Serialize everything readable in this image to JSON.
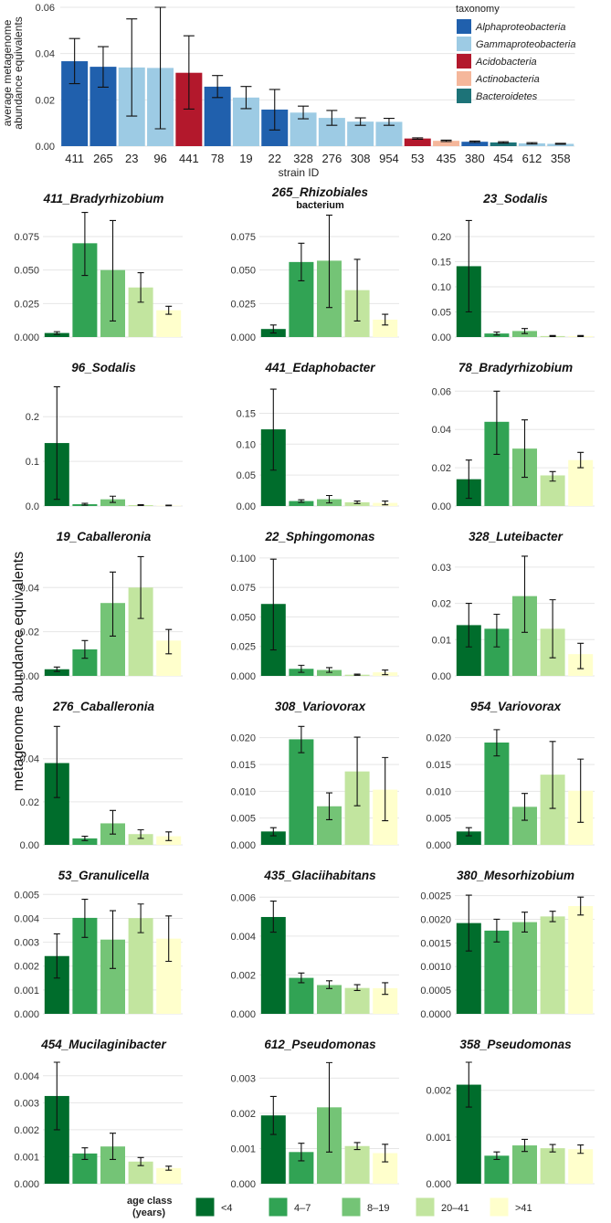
{
  "chart_data": {
    "top": {
      "type": "bar",
      "ylabel_lines": [
        "average metagenome",
        "abundance equivalents"
      ],
      "xlabel": "strain ID",
      "ylim": [
        0,
        0.06
      ],
      "yticks": [
        0,
        0.02,
        0.04,
        0.06
      ],
      "ytick_labels": [
        "0.00",
        "0.02",
        "0.04",
        "0.06"
      ],
      "categories": [
        "411",
        "265",
        "23",
        "96",
        "441",
        "78",
        "19",
        "22",
        "328",
        "276",
        "308",
        "954",
        "53",
        "435",
        "380",
        "454",
        "612",
        "358"
      ],
      "values": [
        0.0367,
        0.0343,
        0.034,
        0.0338,
        0.0317,
        0.0257,
        0.021,
        0.0158,
        0.0145,
        0.0122,
        0.0106,
        0.0105,
        0.0033,
        0.0023,
        0.0019,
        0.0016,
        0.0012,
        0.001
      ],
      "errors": [
        [
          0.027,
          0.0465
        ],
        [
          0.0255,
          0.043
        ],
        [
          0.013,
          0.055
        ],
        [
          0.0075,
          0.06
        ],
        [
          0.016,
          0.0477
        ],
        [
          0.021,
          0.0305
        ],
        [
          0.0162,
          0.0258
        ],
        [
          0.007,
          0.0245
        ],
        [
          0.0118,
          0.0173
        ],
        [
          0.009,
          0.0154
        ],
        [
          0.009,
          0.0122
        ],
        [
          0.009,
          0.012
        ],
        [
          0.003,
          0.0036
        ],
        [
          0.002,
          0.0026
        ],
        [
          0.0016,
          0.0022
        ],
        [
          0.0013,
          0.0019
        ],
        [
          0.0009,
          0.0015
        ],
        [
          0.0008,
          0.0012
        ]
      ],
      "taxonomy_of_each": [
        "Alphaproteobacteria",
        "Alphaproteobacteria",
        "Gammaproteobacteria",
        "Gammaproteobacteria",
        "Acidobacteria",
        "Alphaproteobacteria",
        "Gammaproteobacteria",
        "Alphaproteobacteria",
        "Gammaproteobacteria",
        "Gammaproteobacteria",
        "Gammaproteobacteria",
        "Gammaproteobacteria",
        "Acidobacteria",
        "Actinobacteria",
        "Alphaproteobacteria",
        "Bacteroidetes",
        "Gammaproteobacteria",
        "Gammaproteobacteria"
      ],
      "legend": {
        "title": "taxonomy",
        "items": [
          {
            "label": "Alphaproteobacteria",
            "color": "#2060ad"
          },
          {
            "label": "Gammaproteobacteria",
            "color": "#9dcbe4"
          },
          {
            "label": "Acidobacteria",
            "color": "#b3182c"
          },
          {
            "label": "Actinobacteria",
            "color": "#f5b79b"
          },
          {
            "label": "Bacteroidetes",
            "color": "#1d7378"
          }
        ]
      }
    },
    "shared_ylabel": "metagenome abundance equivalents",
    "age_legend": {
      "title_lines": [
        "age class",
        "(years)"
      ],
      "classes": [
        {
          "label": "<4",
          "color": "#006d2c"
        },
        {
          "label": "4–7",
          "color": "#31a354"
        },
        {
          "label": "8–19",
          "color": "#74c476"
        },
        {
          "label": "20–41",
          "color": "#c2e59f"
        },
        {
          "label": ">41",
          "color": "#ffffcc"
        }
      ]
    },
    "panels": [
      {
        "title": "411_Bradyrhizobium",
        "title_lines": [
          "411_Bradyrhizobium"
        ],
        "ymax": 0.09,
        "yticks": [
          0,
          0.025,
          0.05,
          0.075
        ],
        "ytick_labels": [
          "0.000",
          "0.025",
          "0.050",
          "0.075"
        ],
        "values": [
          0.003,
          0.07,
          0.05,
          0.037,
          0.02
        ],
        "errors": [
          [
            0.002,
            0.004
          ],
          [
            0.046,
            0.093
          ],
          [
            0.012,
            0.087
          ],
          [
            0.026,
            0.048
          ],
          [
            0.017,
            0.023
          ]
        ]
      },
      {
        "title": "265_Rhizobiales bacterium",
        "title_lines": [
          "265_Rhizobiales",
          "bacterium"
        ],
        "ymax": 0.09,
        "yticks": [
          0,
          0.025,
          0.05,
          0.075
        ],
        "ytick_labels": [
          "0.000",
          "0.025",
          "0.050",
          "0.075"
        ],
        "values": [
          0.006,
          0.056,
          0.057,
          0.035,
          0.013
        ],
        "errors": [
          [
            0.003,
            0.009
          ],
          [
            0.042,
            0.07
          ],
          [
            0.022,
            0.091
          ],
          [
            0.012,
            0.058
          ],
          [
            0.009,
            0.017
          ]
        ]
      },
      {
        "title": "23_Sodalis",
        "title_lines": [
          "23_Sodalis"
        ],
        "ymax": 0.24,
        "yticks": [
          0,
          0.05,
          0.1,
          0.15,
          0.2
        ],
        "ytick_labels": [
          "0.00",
          "0.05",
          "0.10",
          "0.15",
          "0.20"
        ],
        "values": [
          0.141,
          0.007,
          0.012,
          0.002,
          0.002
        ],
        "errors": [
          [
            0.05,
            0.232
          ],
          [
            0.004,
            0.01
          ],
          [
            0.007,
            0.017
          ],
          [
            0.001,
            0.003
          ],
          [
            0.001,
            0.003
          ]
        ]
      },
      {
        "title": "96_Sodalis",
        "title_lines": [
          "96_Sodalis"
        ],
        "ymax": 0.27,
        "yticks": [
          0,
          0.1,
          0.2
        ],
        "ytick_labels": [
          "0.0",
          "0.1",
          "0.2"
        ],
        "values": [
          0.141,
          0.004,
          0.015,
          0.002,
          0.001
        ],
        "errors": [
          [
            0.015,
            0.267
          ],
          [
            0.002,
            0.006
          ],
          [
            0.008,
            0.022
          ],
          [
            0.001,
            0.003
          ],
          [
            0.0005,
            0.002
          ]
        ]
      },
      {
        "title": "441_Edaphobacter",
        "title_lines": [
          "441_Edaphobacter"
        ],
        "ymax": 0.195,
        "yticks": [
          0,
          0.05,
          0.1,
          0.15
        ],
        "ytick_labels": [
          "0.00",
          "0.05",
          "0.10",
          "0.15"
        ],
        "values": [
          0.124,
          0.008,
          0.011,
          0.006,
          0.005
        ],
        "errors": [
          [
            0.058,
            0.189
          ],
          [
            0.006,
            0.01
          ],
          [
            0.005,
            0.017
          ],
          [
            0.004,
            0.008
          ],
          [
            0.002,
            0.008
          ]
        ]
      },
      {
        "title": "78_Bradyrhizobium",
        "title_lines": [
          "78_Bradyrhizobium"
        ],
        "ymax": 0.063,
        "yticks": [
          0,
          0.02,
          0.04,
          0.06
        ],
        "ytick_labels": [
          "0.00",
          "0.02",
          "0.04",
          "0.06"
        ],
        "values": [
          0.014,
          0.044,
          0.03,
          0.016,
          0.024
        ],
        "errors": [
          [
            0.004,
            0.024
          ],
          [
            0.027,
            0.06
          ],
          [
            0.015,
            0.045
          ],
          [
            0.013,
            0.018
          ],
          [
            0.02,
            0.028
          ]
        ]
      },
      {
        "title": "19_Caballeronia",
        "title_lines": [
          "19_Caballeronia"
        ],
        "ymax": 0.055,
        "yticks": [
          0,
          0.02,
          0.04
        ],
        "ytick_labels": [
          "0.00",
          "0.02",
          "0.04"
        ],
        "values": [
          0.003,
          0.012,
          0.033,
          0.04,
          0.016
        ],
        "errors": [
          [
            0.002,
            0.004
          ],
          [
            0.008,
            0.016
          ],
          [
            0.018,
            0.047
          ],
          [
            0.026,
            0.054
          ],
          [
            0.01,
            0.021
          ]
        ]
      },
      {
        "title": "22_Sphingomonas",
        "title_lines": [
          "22_Sphingomonas"
        ],
        "ymax": 0.103,
        "yticks": [
          0,
          0.025,
          0.05,
          0.075,
          0.1
        ],
        "ytick_labels": [
          "0.000",
          "0.025",
          "0.050",
          "0.075",
          "0.100"
        ],
        "values": [
          0.061,
          0.006,
          0.005,
          0.001,
          0.003
        ],
        "errors": [
          [
            0.022,
            0.099
          ],
          [
            0.003,
            0.009
          ],
          [
            0.003,
            0.007
          ],
          [
            0.0005,
            0.0015
          ],
          [
            0.001,
            0.005
          ]
        ]
      },
      {
        "title": "328_Luteibacter",
        "title_lines": [
          "328_Luteibacter"
        ],
        "ymax": 0.0335,
        "yticks": [
          0,
          0.01,
          0.02,
          0.03
        ],
        "ytick_labels": [
          "0.00",
          "0.01",
          "0.02",
          "0.03"
        ],
        "values": [
          0.014,
          0.013,
          0.022,
          0.013,
          0.006
        ],
        "errors": [
          [
            0.008,
            0.02
          ],
          [
            0.008,
            0.017
          ],
          [
            0.012,
            0.033
          ],
          [
            0.005,
            0.021
          ],
          [
            0.002,
            0.009
          ]
        ]
      },
      {
        "title": "276_Caballeronia",
        "title_lines": [
          "276_Caballeronia"
        ],
        "ymax": 0.056,
        "yticks": [
          0,
          0.02,
          0.04
        ],
        "ytick_labels": [
          "0.00",
          "0.02",
          "0.04"
        ],
        "values": [
          0.038,
          0.003,
          0.01,
          0.005,
          0.004
        ],
        "errors": [
          [
            0.022,
            0.055
          ],
          [
            0.002,
            0.004
          ],
          [
            0.005,
            0.016
          ],
          [
            0.003,
            0.007
          ],
          [
            0.002,
            0.006
          ]
        ]
      },
      {
        "title": "308_Variovorax",
        "title_lines": [
          "308_Variovorax"
        ],
        "ymax": 0.0225,
        "yticks": [
          0,
          0.005,
          0.01,
          0.015,
          0.02
        ],
        "ytick_labels": [
          "0.000",
          "0.005",
          "0.010",
          "0.015",
          "0.020"
        ],
        "values": [
          0.0025,
          0.0197,
          0.0072,
          0.0137,
          0.0103
        ],
        "errors": [
          [
            0.0017,
            0.0032
          ],
          [
            0.0172,
            0.0221
          ],
          [
            0.0047,
            0.0097
          ],
          [
            0.0073,
            0.0201
          ],
          [
            0.0045,
            0.0163
          ]
        ]
      },
      {
        "title": "954_Variovorax",
        "title_lines": [
          "954_Variovorax"
        ],
        "ymax": 0.0225,
        "yticks": [
          0,
          0.005,
          0.01,
          0.015,
          0.02
        ],
        "ytick_labels": [
          "0.000",
          "0.005",
          "0.010",
          "0.015",
          "0.020"
        ],
        "values": [
          0.0025,
          0.0191,
          0.0071,
          0.0131,
          0.0101
        ],
        "errors": [
          [
            0.0017,
            0.0032
          ],
          [
            0.0166,
            0.0215
          ],
          [
            0.0046,
            0.0096
          ],
          [
            0.0068,
            0.0193
          ],
          [
            0.0042,
            0.016
          ]
        ]
      },
      {
        "title": "53_Granulicella",
        "title_lines": [
          "53_Granulicella"
        ],
        "ymax": 0.00505,
        "yticks": [
          0,
          0.001,
          0.002,
          0.003,
          0.004,
          0.005
        ],
        "ytick_labels": [
          "0.000",
          "0.001",
          "0.002",
          "0.003",
          "0.004",
          "0.005"
        ],
        "values": [
          0.00242,
          0.00402,
          0.00311,
          0.00401,
          0.00315
        ],
        "errors": [
          [
            0.0015,
            0.00335
          ],
          [
            0.0032,
            0.0048
          ],
          [
            0.0019,
            0.00432
          ],
          [
            0.0034,
            0.0046
          ],
          [
            0.0022,
            0.0041
          ]
        ]
      },
      {
        "title": "435_Glaciihabitans",
        "title_lines": [
          "435_Glaciihabitans"
        ],
        "ymax": 0.0062,
        "yticks": [
          0,
          0.002,
          0.004,
          0.006
        ],
        "ytick_labels": [
          "0.000",
          "0.002",
          "0.004",
          "0.006"
        ],
        "values": [
          0.00498,
          0.00185,
          0.00148,
          0.00133,
          0.00132
        ],
        "errors": [
          [
            0.0042,
            0.0058
          ],
          [
            0.0016,
            0.0021
          ],
          [
            0.0013,
            0.0017
          ],
          [
            0.0012,
            0.0015
          ],
          [
            0.001,
            0.0016
          ]
        ]
      },
      {
        "title": "380_Mesorhizobium",
        "title_lines": [
          "380_Mesorhizobium"
        ],
        "ymax": 0.00255,
        "yticks": [
          0,
          0.0005,
          0.001,
          0.0015,
          0.002,
          0.0025
        ],
        "ytick_labels": [
          "0.0000",
          "0.0005",
          "0.0010",
          "0.0015",
          "0.0020",
          "0.0025"
        ],
        "values": [
          0.00192,
          0.00176,
          0.00194,
          0.00206,
          0.00228
        ],
        "errors": [
          [
            0.00133,
            0.00251
          ],
          [
            0.00152,
            0.002
          ],
          [
            0.00173,
            0.00215
          ],
          [
            0.00195,
            0.00217
          ],
          [
            0.00209,
            0.00247
          ]
        ]
      },
      {
        "title": "454_Mucilaginibacter",
        "title_lines": [
          "454_Mucilaginibacter"
        ],
        "ymax": 0.0045,
        "yticks": [
          0,
          0.001,
          0.002,
          0.003,
          0.004
        ],
        "ytick_labels": [
          "0.000",
          "0.001",
          "0.002",
          "0.003",
          "0.004"
        ],
        "values": [
          0.00325,
          0.00112,
          0.00138,
          0.00082,
          0.00058
        ],
        "errors": [
          [
            0.002,
            0.0045
          ],
          [
            0.0009,
            0.00133
          ],
          [
            0.0009,
            0.00187
          ],
          [
            0.00067,
            0.00097
          ],
          [
            0.0005,
            0.00065
          ]
        ]
      },
      {
        "title": "612_Pseudomonas",
        "title_lines": [
          "612_Pseudomonas"
        ],
        "ymax": 0.00345,
        "yticks": [
          0,
          0.001,
          0.002,
          0.003
        ],
        "ytick_labels": [
          "0.000",
          "0.001",
          "0.002",
          "0.003"
        ],
        "values": [
          0.00194,
          0.0009,
          0.00217,
          0.00107,
          0.00087
        ],
        "errors": [
          [
            0.0014,
            0.00248
          ],
          [
            0.00065,
            0.00115
          ],
          [
            0.0009,
            0.00344
          ],
          [
            0.00097,
            0.00117
          ],
          [
            0.00062,
            0.00112
          ]
        ]
      },
      {
        "title": "358_Pseudomonas",
        "title_lines": [
          "358_Pseudomonas"
        ],
        "ymax": 0.0026,
        "yticks": [
          0,
          0.001,
          0.002
        ],
        "ytick_labels": [
          "0.000",
          "0.001",
          "0.002"
        ],
        "values": [
          0.00212,
          0.0006,
          0.00082,
          0.00076,
          0.00074
        ],
        "errors": [
          [
            0.00164,
            0.0026
          ],
          [
            0.00052,
            0.00068
          ],
          [
            0.00069,
            0.00095
          ],
          [
            0.00068,
            0.00084
          ],
          [
            0.00065,
            0.00083
          ]
        ]
      }
    ]
  }
}
